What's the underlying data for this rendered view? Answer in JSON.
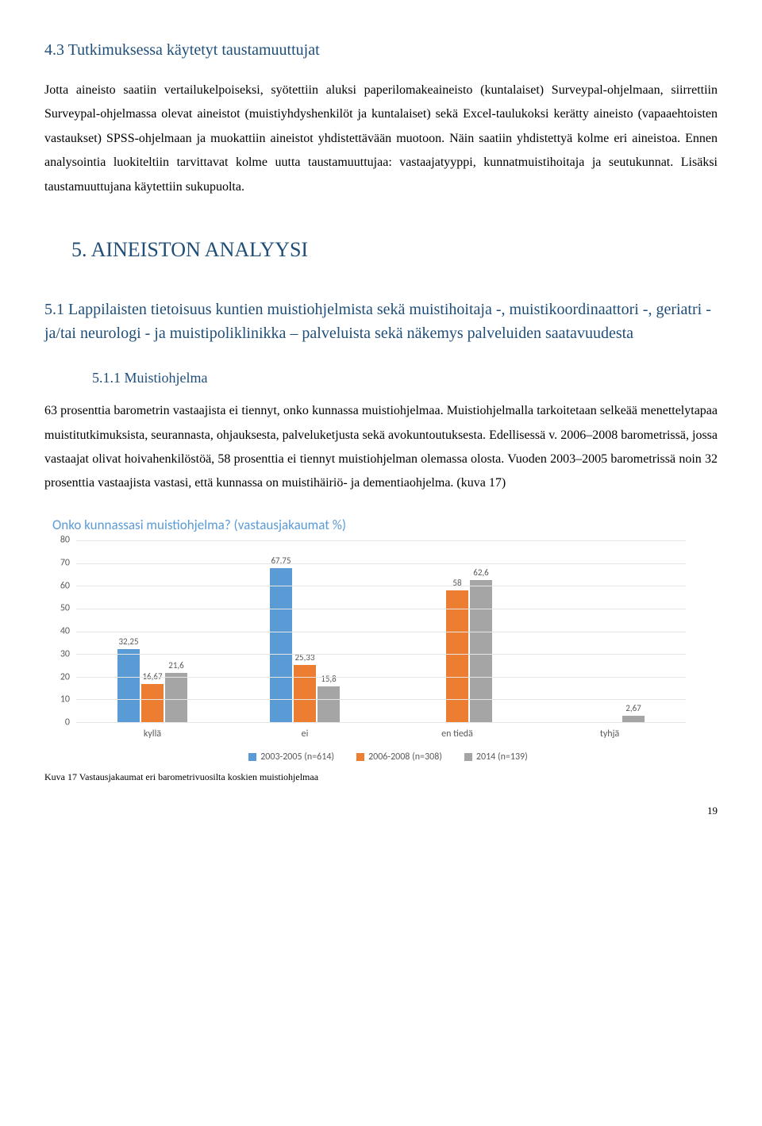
{
  "section_4_3": {
    "heading": "4.3 Tutkimuksessa käytetyt taustamuuttujat",
    "para": "Jotta aineisto saatiin vertailukelpoiseksi, syötettiin aluksi paperilomakeaineisto (kuntalaiset) Surveypal-ohjelmaan, siirrettiin Surveypal-ohjelmassa olevat aineistot (muistiyhdyshenkilöt ja kuntalaiset) sekä Excel-taulukoksi kerätty aineisto (vapaaehtoisten vastaukset) SPSS-ohjelmaan ja muokattiin aineistot yhdistettävään muotoon. Näin saatiin yhdistettyä kolme eri aineistoa. Ennen analysointia luokiteltiin tarvittavat kolme uutta taustamuuttujaa: vastaajatyyppi, kunnatmuistihoitaja ja seutukunnat. Lisäksi taustamuuttujana käytettiin sukupuolta."
  },
  "section_5": {
    "heading": "5. AINEISTON ANALYYSI"
  },
  "section_5_1": {
    "heading": "5.1 Lappilaisten tietoisuus kuntien muistiohjelmista sekä muistihoitaja -, muistikoordinaattori -, geriatri - ja/tai neurologi - ja muistipoliklinikka – palveluista sekä näkemys palveluiden saatavuudesta"
  },
  "section_5_1_1": {
    "heading": "5.1.1 Muistiohjelma",
    "para": "63 prosenttia barometrin vastaajista ei tiennyt, onko kunnassa muistiohjelmaa. Muistiohjelmalla tarkoitetaan selkeää menettelytapaa muistitutkimuksista, seurannasta, ohjauksesta, palveluketjusta sekä avokuntoutuksesta. Edellisessä v. 2006–2008 barometrissä, jossa vastaajat olivat hoivahenkilöstöä, 58 prosenttia ei tiennyt muistiohjelman olemassa olosta. Vuoden 2003–2005 barometrissä noin 32 prosenttia vastaajista vastasi, että kunnassa on muistihäiriö- ja dementiaohjelma. (kuva 17)"
  },
  "chart": {
    "title": "Onko kunnassasi muistiohjelma? (vastausjakaumat %)",
    "y_max": 80,
    "y_ticks": [
      0,
      10,
      20,
      30,
      40,
      50,
      60,
      70,
      80
    ],
    "categories": [
      "kyllä",
      "ei",
      "en tiedä",
      "tyhjä"
    ],
    "series": [
      {
        "label": "2003-2005 (n=614)",
        "color": "#5b9bd5",
        "values": [
          32.25,
          67.75,
          null,
          null
        ]
      },
      {
        "label": "2006-2008 (n=308)",
        "color": "#ed7d31",
        "values": [
          16.67,
          25.33,
          58,
          null
        ]
      },
      {
        "label": "2014 (n=139)",
        "color": "#a5a5a5",
        "values": [
          21.6,
          15.8,
          62.6,
          2.67
        ]
      }
    ],
    "value_labels": [
      [
        "32,25",
        "67,75",
        "",
        ""
      ],
      [
        "16,67",
        "25,33",
        "58",
        ""
      ],
      [
        "21,6",
        "15,8",
        "62,6",
        "2,67"
      ]
    ]
  },
  "caption": "Kuva 17 Vastausjakaumat eri barometrivuosilta koskien muistiohjelmaa",
  "page_num": "19"
}
